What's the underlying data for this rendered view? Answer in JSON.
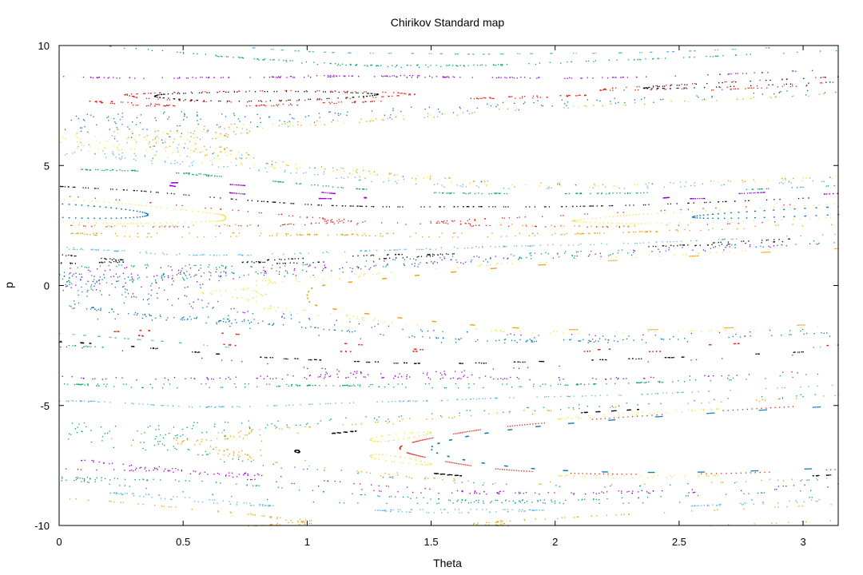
{
  "chart_data": {
    "type": "scatter",
    "title": "Chirikov Standard map",
    "xlabel": "Theta",
    "ylabel": "p",
    "xlim": [
      0,
      3.14159
    ],
    "ylim": [
      -10,
      10
    ],
    "xticks": [
      0,
      0.5,
      1,
      1.5,
      2,
      2.5,
      3
    ],
    "xtick_labels": [
      "0",
      "0.5",
      "1",
      "1.5",
      "2",
      "2.5",
      "3"
    ],
    "yticks": [
      -10,
      -5,
      0,
      5,
      10
    ],
    "ytick_labels": [
      "-10",
      "-5",
      "0",
      "5",
      "10"
    ],
    "grid": false,
    "legend": "none",
    "map": {
      "K": 0.971635,
      "p_period": 6.28319
    },
    "palette": [
      "#9400d3",
      "#009e73",
      "#56b4e9",
      "#e69f00",
      "#f0e442",
      "#0072b2",
      "#e51e10",
      "#000000"
    ],
    "orbits": [
      {
        "theta": 0.05,
        "p": 0.2,
        "color": 0
      },
      {
        "theta": 0.1,
        "p": 0.8,
        "color": 1
      },
      {
        "theta": 0.15,
        "p": 1.5,
        "color": 2
      },
      {
        "theta": 0.2,
        "p": 2.1,
        "color": 3
      },
      {
        "theta": 0.25,
        "p": 2.6,
        "color": 4
      },
      {
        "theta": 0.3,
        "p": 3.14,
        "color": 5
      },
      {
        "theta": 0.35,
        "p": 3.5,
        "color": 6
      },
      {
        "theta": 0.4,
        "p": 3.9,
        "color": 7
      },
      {
        "theta": 0.45,
        "p": 4.3,
        "color": 0
      },
      {
        "theta": 0.5,
        "p": 4.7,
        "color": 1
      },
      {
        "theta": 0.55,
        "p": 5.3,
        "color": 2
      },
      {
        "theta": 0.6,
        "p": 5.9,
        "color": 3
      },
      {
        "theta": 0.65,
        "p": 6.3,
        "color": 4
      },
      {
        "theta": 0.7,
        "p": 6.9,
        "color": 5
      },
      {
        "theta": 0.75,
        "p": 7.5,
        "color": 6
      },
      {
        "theta": 0.8,
        "p": 8.1,
        "color": 7
      },
      {
        "theta": 0.85,
        "p": 8.7,
        "color": 0
      },
      {
        "theta": 0.9,
        "p": 9.42,
        "color": 1
      },
      {
        "theta": 0.95,
        "p": 9.8,
        "color": 2
      },
      {
        "theta": 1.0,
        "p": -0.5,
        "color": 3
      },
      {
        "theta": 1.05,
        "p": -1.1,
        "color": 4
      },
      {
        "theta": 1.1,
        "p": -1.8,
        "color": 5
      },
      {
        "theta": 1.15,
        "p": -2.4,
        "color": 6
      },
      {
        "theta": 1.2,
        "p": -3.14,
        "color": 7
      },
      {
        "theta": 1.25,
        "p": -3.6,
        "color": 0
      },
      {
        "theta": 1.3,
        "p": -4.2,
        "color": 1
      },
      {
        "theta": 1.35,
        "p": -4.8,
        "color": 2
      },
      {
        "theta": 1.4,
        "p": -5.5,
        "color": 3
      },
      {
        "theta": 1.45,
        "p": -6.1,
        "color": 4
      },
      {
        "theta": 1.5,
        "p": -6.7,
        "color": 5
      },
      {
        "theta": 1.55,
        "p": -7.3,
        "color": 6
      },
      {
        "theta": 1.6,
        "p": -7.9,
        "color": 7
      },
      {
        "theta": 1.65,
        "p": -8.5,
        "color": 0
      },
      {
        "theta": 1.7,
        "p": -9.0,
        "color": 1
      },
      {
        "theta": 1.75,
        "p": -9.42,
        "color": 2
      },
      {
        "theta": 1.8,
        "p": -9.8,
        "color": 3
      },
      {
        "theta": 0.2,
        "p": 1.1,
        "color": 7
      },
      {
        "theta": 0.3,
        "p": -1.2,
        "color": 5
      },
      {
        "theta": 2.2,
        "p": 8.2,
        "color": 6
      },
      {
        "theta": 2.4,
        "p": -8.3,
        "color": 1
      }
    ],
    "iterations": 360
  }
}
